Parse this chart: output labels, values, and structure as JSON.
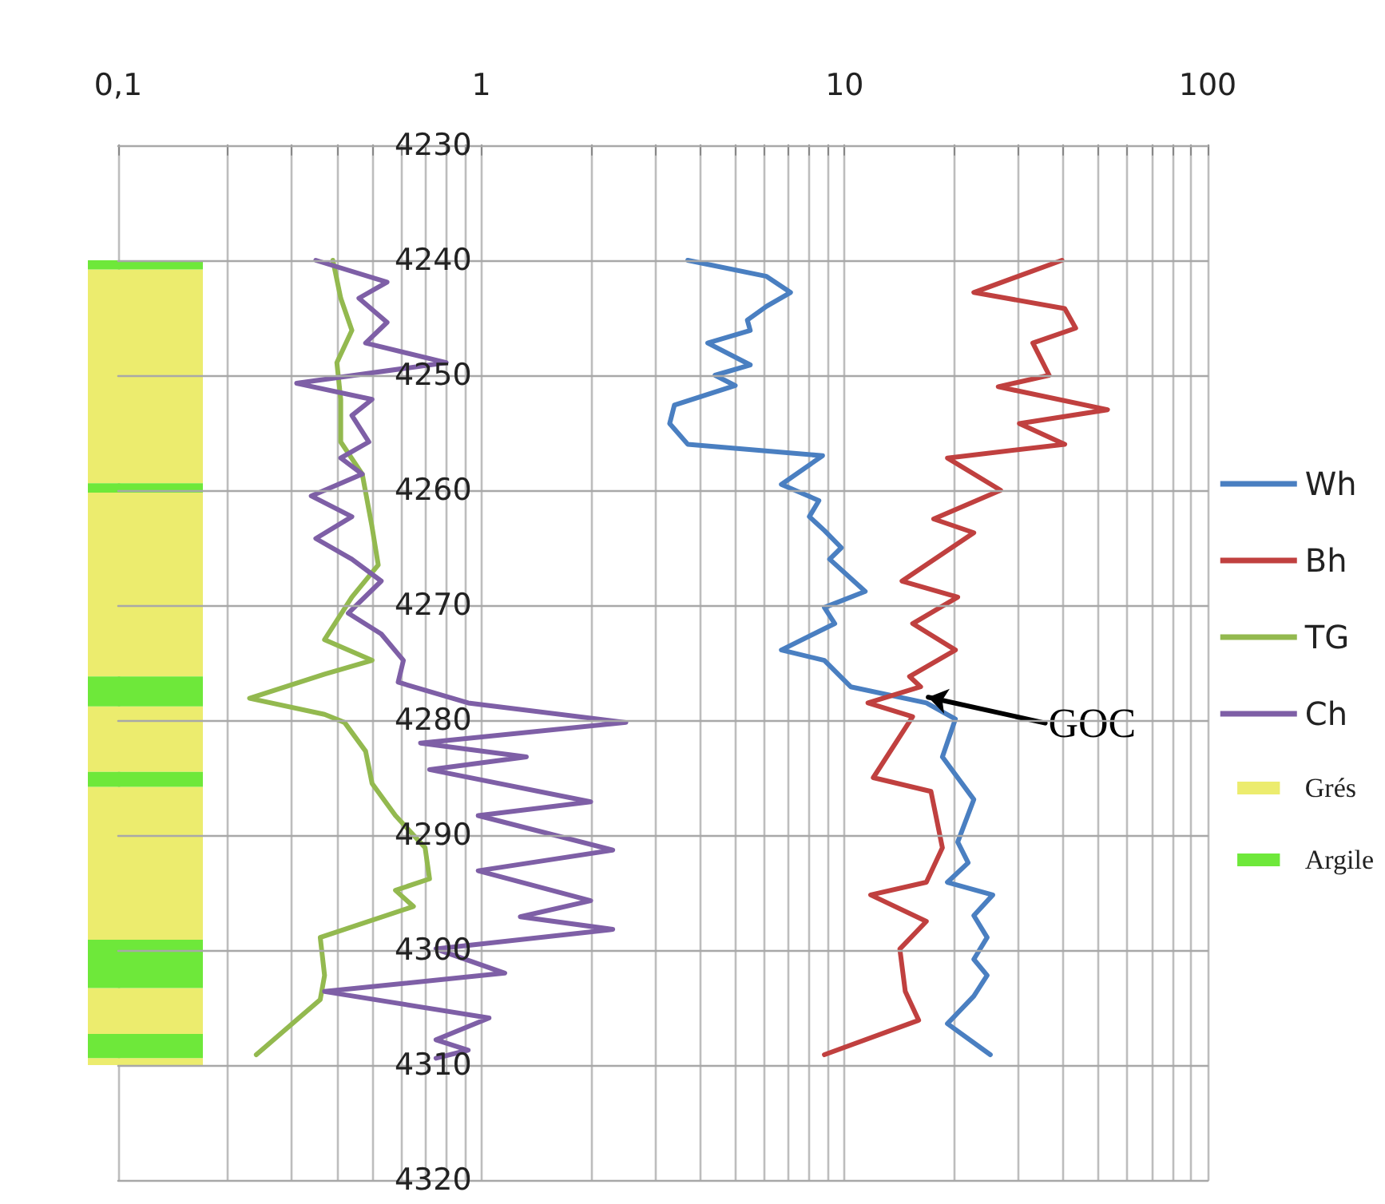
{
  "chart_data": {
    "type": "line",
    "log": "x",
    "xlim": [
      0.1,
      100
    ],
    "ylim": [
      4320,
      4230
    ],
    "xticks": [
      {
        "value": 0.1,
        "label": "0,1"
      },
      {
        "value": 0.2,
        "label": null
      },
      {
        "value": 0.3,
        "label": null
      },
      {
        "value": 0.4,
        "label": null
      },
      {
        "value": 0.5,
        "label": null
      },
      {
        "value": 0.6,
        "label": null
      },
      {
        "value": 0.7,
        "label": null
      },
      {
        "value": 0.8,
        "label": null
      },
      {
        "value": 0.9,
        "label": null
      },
      1,
      {
        "value": 2,
        "label": null
      },
      {
        "value": 3,
        "label": null
      },
      {
        "value": 4,
        "label": null
      },
      {
        "value": 5,
        "label": null
      },
      {
        "value": 6,
        "label": null
      },
      {
        "value": 7,
        "label": null
      },
      {
        "value": 8,
        "label": null
      },
      {
        "value": 9,
        "label": null
      },
      10,
      {
        "value": 20,
        "label": null
      },
      {
        "value": 30,
        "label": null
      },
      {
        "value": 40,
        "label": null
      },
      {
        "value": 50,
        "label": null
      },
      {
        "value": 60,
        "label": null
      },
      {
        "value": 70,
        "label": null
      },
      {
        "value": 80,
        "label": null
      },
      {
        "value": 90,
        "label": null
      },
      100
    ],
    "yticks": [
      4230,
      4240,
      4250,
      4260,
      4270,
      4280,
      4290,
      4300,
      4310,
      4320
    ],
    "grid": true,
    "legend": "right",
    "marker": "none",
    "line_style": "solid",
    "series": [
      {
        "name": "Wh",
        "color": "#4a7fc1",
        "x": [
          3.7,
          6.1,
          7.1,
          6.1,
          5.4,
          5.5,
          4.2,
          5.5,
          4.4,
          5.0,
          3.4,
          3.3,
          3.7,
          8.7,
          6.7,
          8.5,
          8.0,
          8.8,
          9.8,
          9.1,
          11.4,
          8.8,
          9.4,
          6.7,
          8.8,
          10.4,
          16.8,
          20.2,
          18.6,
          22.7,
          20.5,
          21.9,
          19.2,
          25.6,
          22.7,
          24.7,
          22.7,
          24.7,
          22.7,
          19.2,
          25.2
        ],
        "values": [
          4240,
          4241.4,
          4242.8,
          4244,
          4245.2,
          4246.1,
          4247.2,
          4249.1,
          4250,
          4250.9,
          4252.6,
          4254.2,
          4256,
          4257,
          4259.5,
          4260.9,
          4262.3,
          4263.5,
          4265,
          4266,
          4268.8,
          4270.2,
          4271.6,
          4273.9,
          4274.8,
          4277.1,
          4278.5,
          4279.9,
          4283.2,
          4286.9,
          4290.6,
          4292.4,
          4294.1,
          4295.2,
          4297,
          4298.9,
          4300.8,
          4302.2,
          4304,
          4306.4,
          4309.1
        ]
      },
      {
        "name": "Bh",
        "color": "#c0403f",
        "x": [
          39.7,
          22.7,
          40.4,
          43.3,
          33,
          36.6,
          26.5,
          53,
          30.3,
          40.4,
          19.2,
          26.9,
          17.6,
          22.7,
          14.4,
          20.5,
          15.4,
          20.2,
          15.1,
          16.2,
          11.6,
          15.4,
          12,
          17.3,
          18.6,
          16.8,
          11.8,
          16.8,
          14.2,
          14.7,
          16,
          8.8
        ],
        "values": [
          4240,
          4242.8,
          4244.2,
          4245.9,
          4247.2,
          4250,
          4251,
          4253,
          4254.2,
          4256,
          4257.2,
          4260,
          4262.5,
          4263.7,
          4267.9,
          4269.3,
          4271.6,
          4273.9,
          4276.2,
          4277.1,
          4278.5,
          4279.7,
          4285,
          4286.2,
          4291.1,
          4294.1,
          4295.2,
          4297.5,
          4299.9,
          4303.6,
          4306.1,
          4309.1
        ]
      },
      {
        "name": "TG",
        "color": "#93b94f",
        "x": [
          0.39,
          0.41,
          0.44,
          0.4,
          0.41,
          0.41,
          0.47,
          0.5,
          0.52,
          0.44,
          0.37,
          0.5,
          0.37,
          0.23,
          0.37,
          0.42,
          0.48,
          0.5,
          0.58,
          0.7,
          0.72,
          0.58,
          0.65,
          0.36,
          0.37,
          0.36,
          0.24
        ],
        "values": [
          4240,
          4243.3,
          4246.1,
          4248.9,
          4252.1,
          4255.8,
          4258.6,
          4263.2,
          4266.5,
          4269.3,
          4273,
          4274.8,
          4276,
          4278.1,
          4279.5,
          4280.2,
          4282.7,
          4285.5,
          4288.3,
          4291.1,
          4293.8,
          4294.8,
          4296.2,
          4298.9,
          4302.2,
          4304.3,
          4309.1
        ]
      },
      {
        "name": "Ch",
        "color": "#7e5fa6",
        "x": [
          0.35,
          0.55,
          0.46,
          0.55,
          0.48,
          0.8,
          0.31,
          0.5,
          0.44,
          0.49,
          0.41,
          0.47,
          0.34,
          0.44,
          0.35,
          0.44,
          0.53,
          0.43,
          0.53,
          0.61,
          0.59,
          0.92,
          2.5,
          0.68,
          1.33,
          0.72,
          2,
          0.98,
          2.3,
          0.98,
          2,
          1.28,
          2.3,
          0.75,
          1.16,
          0.37,
          1.05,
          0.75,
          0.92,
          0.75
        ],
        "values": [
          4240,
          4241.9,
          4243.3,
          4245.4,
          4247.2,
          4248.9,
          4250.7,
          4252.1,
          4253.5,
          4255.8,
          4257.2,
          4258.6,
          4260.5,
          4262.3,
          4264.2,
          4266,
          4267.9,
          4270.7,
          4272.5,
          4274.8,
          4276.7,
          4278.5,
          4280.2,
          4282,
          4283.2,
          4284.3,
          4287.1,
          4288.3,
          4291.3,
          4293.1,
          4295.7,
          4297.1,
          4298.2,
          4299.9,
          4302,
          4303.6,
          4305.9,
          4307.8,
          4308.7,
          4309.4
        ]
      }
    ],
    "bands": [
      {
        "axis": "y",
        "from": 4240,
        "to": 4240.8,
        "label": "Argile",
        "color": "#6ee83a"
      },
      {
        "axis": "y",
        "from": 4240.8,
        "to": 4259.4,
        "label": "Grés",
        "color": "#ecec6e"
      },
      {
        "axis": "y",
        "from": 4259.4,
        "to": 4260.2,
        "color": "#6ee83a"
      },
      {
        "axis": "y",
        "from": 4260.2,
        "to": 4276.2,
        "color": "#ecec6e"
      },
      {
        "axis": "y",
        "from": 4276.2,
        "to": 4278.8,
        "color": "#6ee83a"
      },
      {
        "axis": "y",
        "from": 4278.8,
        "to": 4284.5,
        "color": "#ecec6e"
      },
      {
        "axis": "y",
        "from": 4284.5,
        "to": 4285.8,
        "color": "#6ee83a"
      },
      {
        "axis": "y",
        "from": 4285.8,
        "to": 4299.1,
        "color": "#ecec6e"
      },
      {
        "axis": "y",
        "from": 4299.1,
        "to": 4303.3,
        "color": "#6ee83a"
      },
      {
        "axis": "y",
        "from": 4303.3,
        "to": 4307.3,
        "color": "#ecec6e"
      },
      {
        "axis": "y",
        "from": 4307.3,
        "to": 4309.4,
        "color": "#6ee83a"
      },
      {
        "axis": "y",
        "from": 4309.4,
        "to": 4310,
        "color": "#ecec6e"
      }
    ],
    "annotations": [
      {
        "text": "GOC",
        "x": 17,
        "y": 4278
      }
    ]
  }
}
